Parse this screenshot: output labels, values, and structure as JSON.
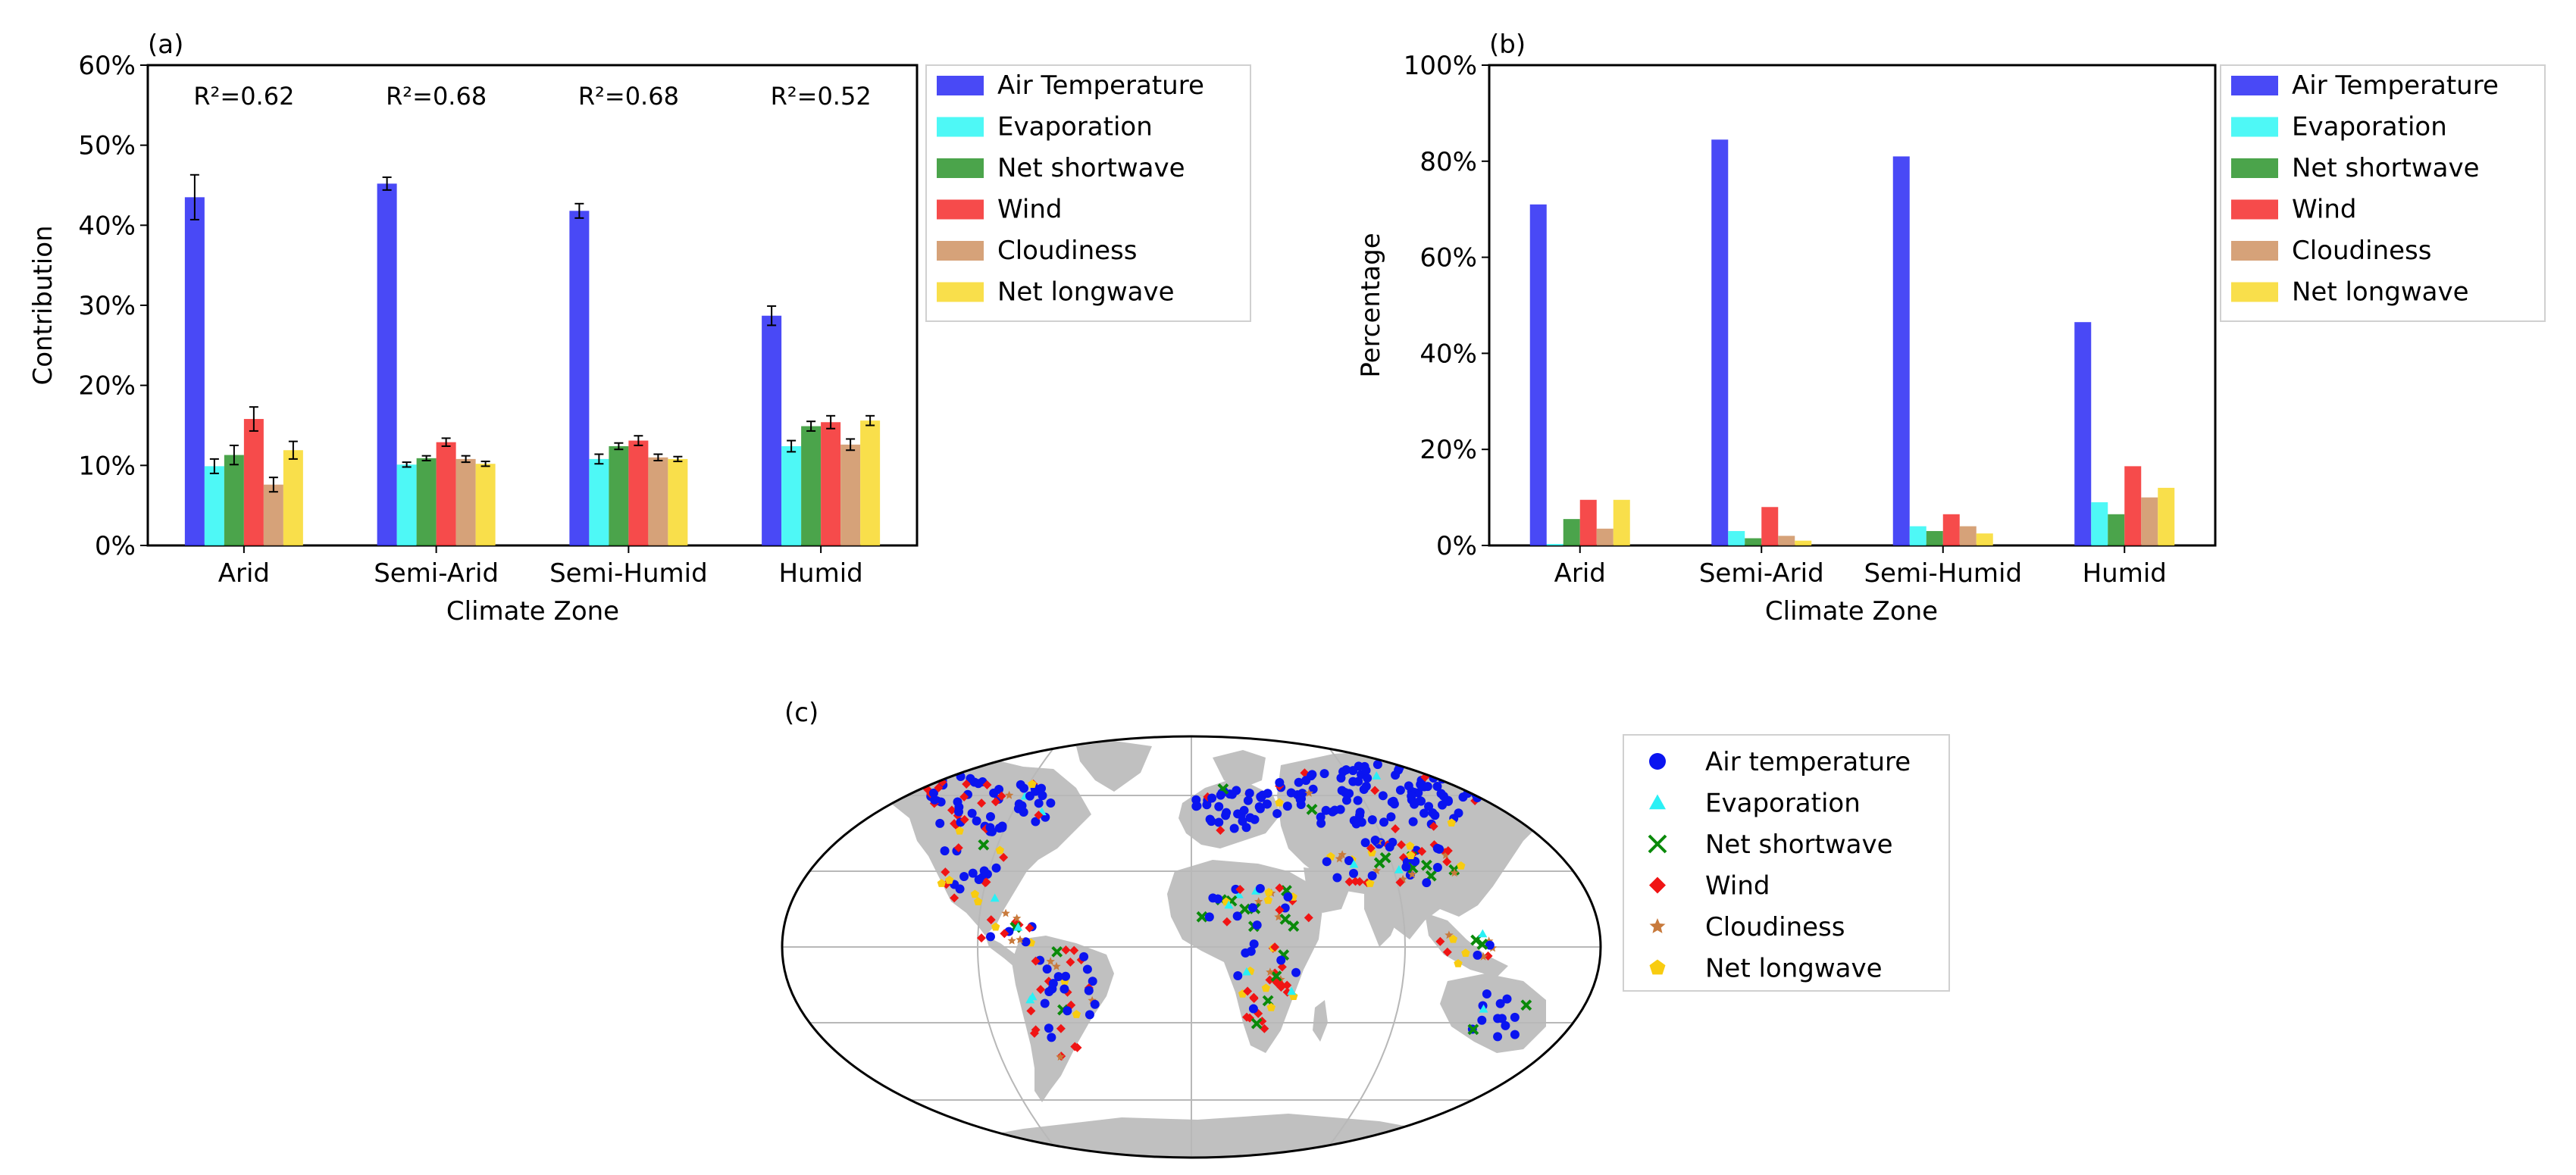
{
  "panels": {
    "a": {
      "label": "(a)"
    },
    "b": {
      "label": "(b)"
    },
    "c": {
      "label": "(c)"
    }
  },
  "colors": {
    "Air Temperature": "#3a3af5",
    "Evaporation": "#3ff7f5",
    "Net shortwave": "#3c9c3c",
    "Wind": "#f53c3c",
    "Cloudiness": "#d29a6e",
    "Net longwave": "#f8dc3c",
    "land": "#c0c0c0",
    "grid": "#b8b8b8"
  },
  "chart_data": [
    {
      "panel": "(a)",
      "type": "bar",
      "xlabel": "Climate Zone",
      "ylabel": "Contribution",
      "ylim": [
        0,
        60
      ],
      "yticks": [
        "0%",
        "10%",
        "20%",
        "30%",
        "40%",
        "50%",
        "60%"
      ],
      "categories": [
        "Arid",
        "Semi-Arid",
        "Semi-Humid",
        "Humid"
      ],
      "annotations": [
        "R²=0.62",
        "R²=0.68",
        "R²=0.68",
        "R²=0.52"
      ],
      "legend_position": "outside-right",
      "series": [
        {
          "name": "Air Temperature",
          "values": [
            43.5,
            45.2,
            41.8,
            28.7
          ],
          "errors": [
            2.8,
            0.8,
            0.9,
            1.2
          ]
        },
        {
          "name": "Evaporation",
          "values": [
            9.9,
            10.1,
            10.8,
            12.4
          ],
          "errors": [
            0.9,
            0.3,
            0.6,
            0.7
          ]
        },
        {
          "name": "Net shortwave",
          "values": [
            11.3,
            10.9,
            12.4,
            14.9
          ],
          "errors": [
            1.2,
            0.3,
            0.4,
            0.6
          ]
        },
        {
          "name": "Wind",
          "values": [
            15.8,
            12.9,
            13.1,
            15.4
          ],
          "errors": [
            1.5,
            0.5,
            0.6,
            0.8
          ]
        },
        {
          "name": "Cloudiness",
          "values": [
            7.6,
            10.8,
            11.0,
            12.6
          ],
          "errors": [
            0.9,
            0.4,
            0.4,
            0.7
          ]
        },
        {
          "name": "Net longwave",
          "values": [
            11.9,
            10.2,
            10.8,
            15.6
          ],
          "errors": [
            1.1,
            0.3,
            0.3,
            0.6
          ]
        }
      ]
    },
    {
      "panel": "(b)",
      "type": "bar",
      "xlabel": "Climate Zone",
      "ylabel": "Percentage",
      "ylim": [
        0,
        100
      ],
      "yticks": [
        "0%",
        "20%",
        "40%",
        "60%",
        "80%",
        "100%"
      ],
      "categories": [
        "Arid",
        "Semi-Arid",
        "Semi-Humid",
        "Humid"
      ],
      "legend_position": "outside-right",
      "series": [
        {
          "name": "Air Temperature",
          "values": [
            71,
            84.5,
            81,
            46.5
          ]
        },
        {
          "name": "Evaporation",
          "values": [
            0.3,
            3,
            4,
            9
          ]
        },
        {
          "name": "Net shortwave",
          "values": [
            5.5,
            1.5,
            3,
            6.5
          ]
        },
        {
          "name": "Wind",
          "values": [
            9.5,
            8,
            6.5,
            16.5
          ]
        },
        {
          "name": "Cloudiness",
          "values": [
            3.5,
            2,
            4,
            10
          ]
        },
        {
          "name": "Net longwave",
          "values": [
            9.5,
            1,
            2.5,
            12
          ]
        }
      ]
    },
    {
      "panel": "(c)",
      "type": "scatter",
      "map": "world (Robinson-like projection)",
      "legend_position": "outside-right",
      "series": [
        {
          "name": "Air temperature",
          "marker": "circle",
          "color": "#0a14f0"
        },
        {
          "name": "Evaporation",
          "marker": "triangle",
          "color": "#2af0f5"
        },
        {
          "name": "Net shortwave",
          "marker": "x",
          "color": "#0a8a0a"
        },
        {
          "name": "Wind",
          "marker": "diamond",
          "color": "#f01414"
        },
        {
          "name": "Cloudiness",
          "marker": "star",
          "color": "#c87a3c"
        },
        {
          "name": "Net longwave",
          "marker": "pentagon",
          "color": "#f8cc10"
        }
      ]
    }
  ]
}
